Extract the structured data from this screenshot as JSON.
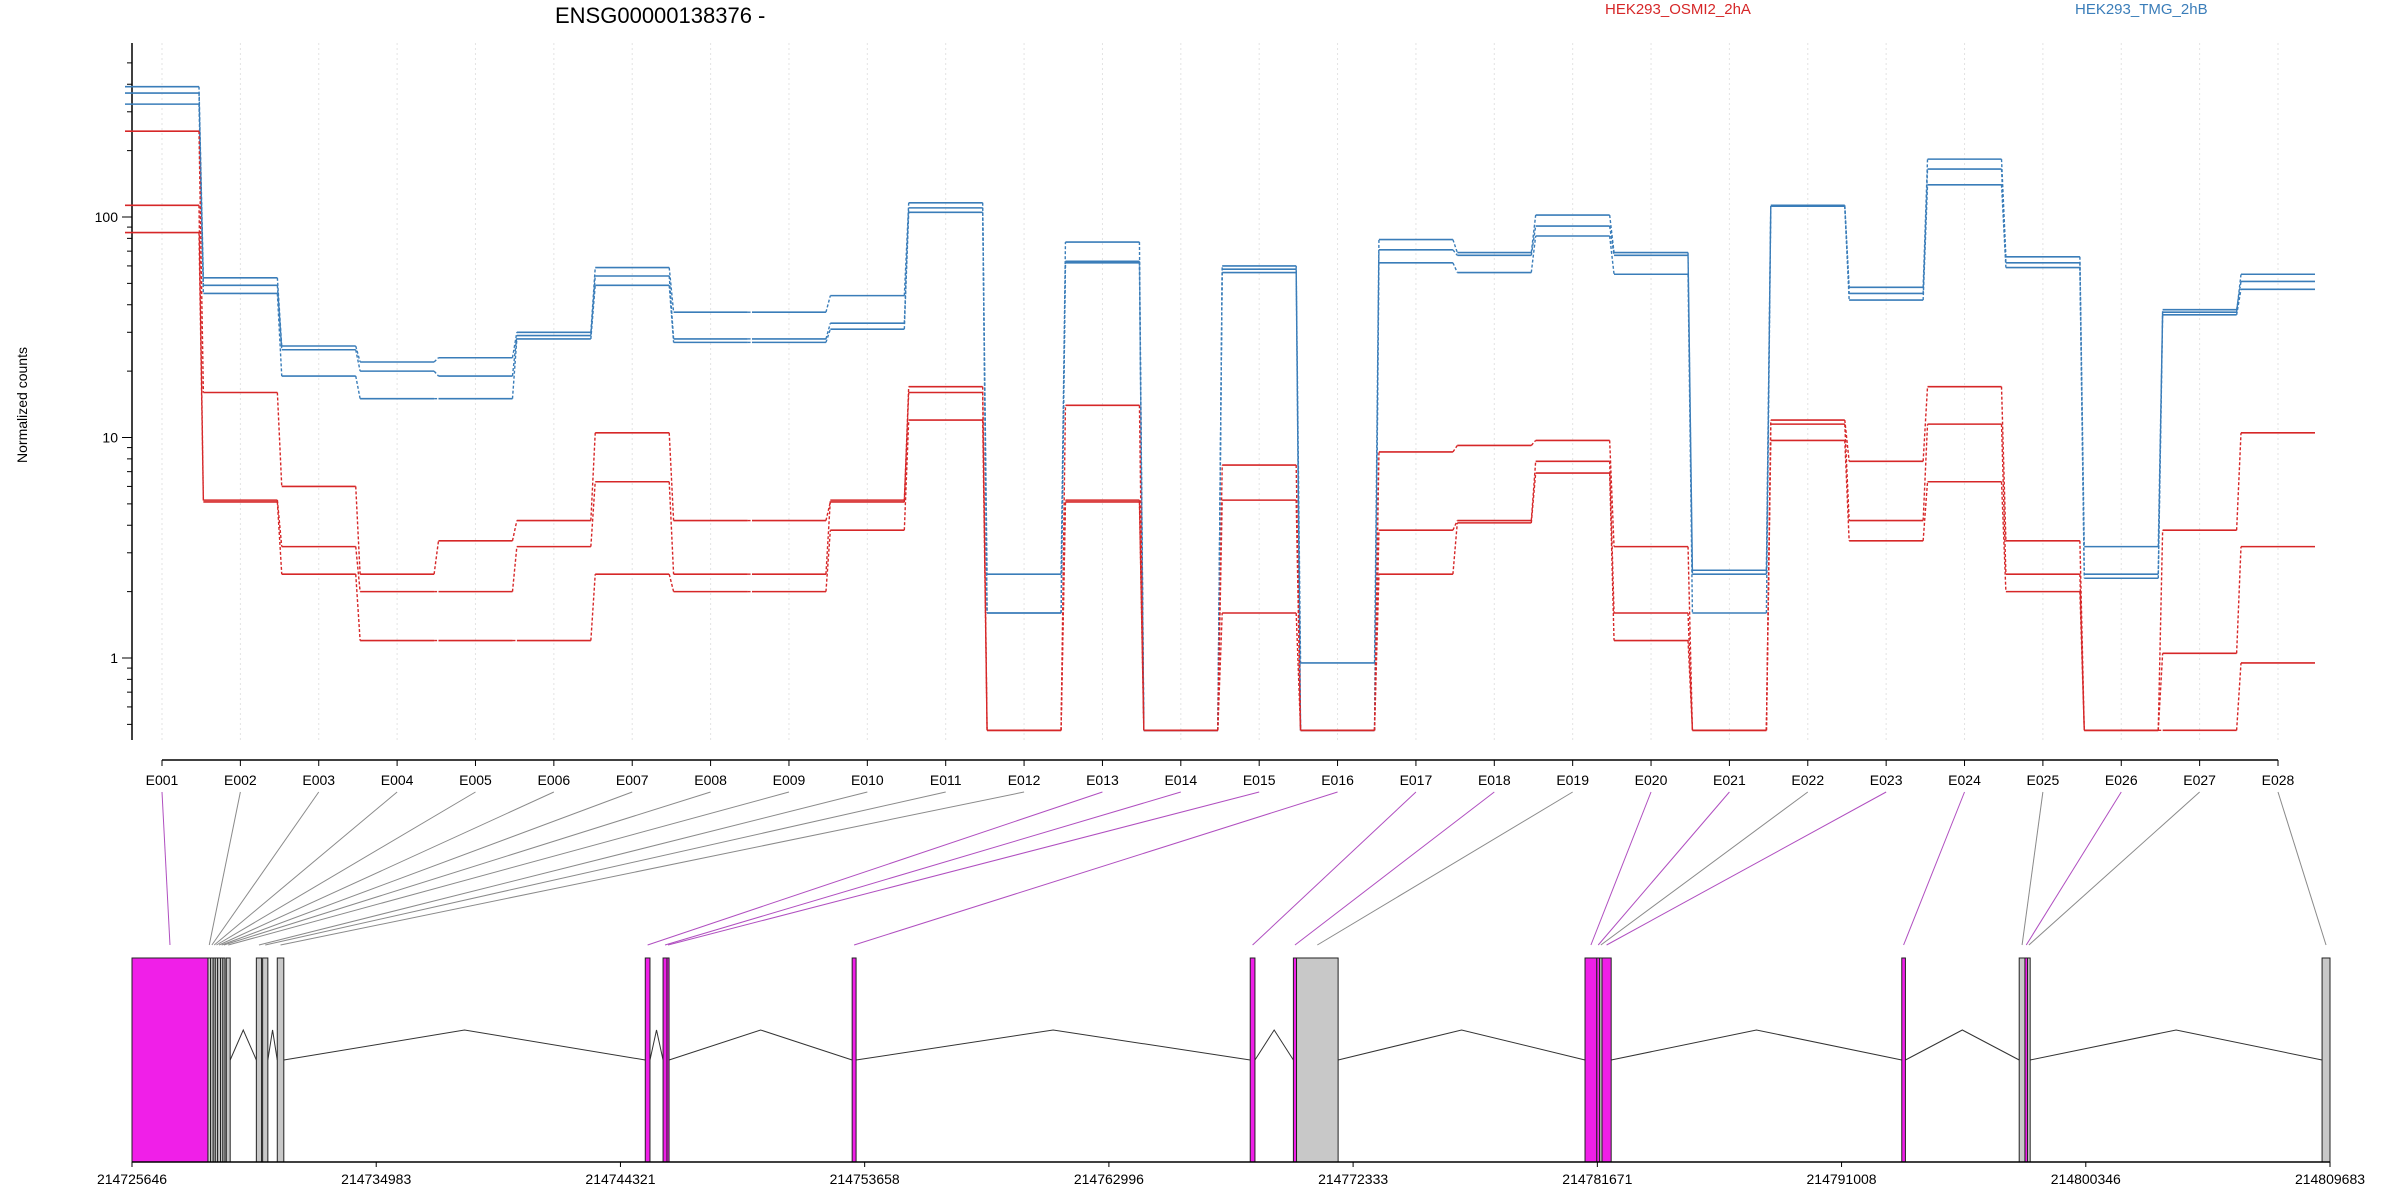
{
  "chart_data": {
    "type": "line",
    "title": "ENSG00000138376 -",
    "ylabel": "Normalized counts",
    "xlabel": "",
    "y_scale": "log",
    "ylim": [
      0.45,
      500
    ],
    "y_ticks": [
      "1",
      "10",
      "100"
    ],
    "y_tick_values": [
      1,
      10,
      100
    ],
    "grid": "vertical-dotted",
    "legend": [
      {
        "name": "HEK293_OSMI2_2hA",
        "color": "#d62728"
      },
      {
        "name": "HEK293_TMG_2hB",
        "color": "#3a7db9"
      }
    ],
    "categories": [
      "E001",
      "E002",
      "E003",
      "E004",
      "E005",
      "E006",
      "E007",
      "E008",
      "E009",
      "E010",
      "E011",
      "E012",
      "E013",
      "E014",
      "E015",
      "E016",
      "E017",
      "E018",
      "E019",
      "E020",
      "E021",
      "E022",
      "E023",
      "E024",
      "E025",
      "E026",
      "E027",
      "E028"
    ],
    "series": [
      {
        "group": "HEK293_TMG_2hB",
        "color": "#3a7db9",
        "values": [
          390,
          53,
          26,
          22,
          23,
          30,
          59,
          37,
          37,
          44,
          116,
          2.4,
          77,
          0.47,
          60,
          0.95,
          79,
          69,
          102,
          69,
          2.5,
          113,
          48,
          183,
          66,
          3.2,
          37,
          55
        ]
      },
      {
        "group": "HEK293_TMG_2hB",
        "color": "#3a7db9",
        "values": [
          365,
          49,
          25,
          20,
          19,
          29,
          54,
          28,
          28,
          33,
          110,
          1.6,
          63,
          0.47,
          58,
          0.47,
          71,
          67,
          91,
          67,
          2.4,
          112,
          45,
          165,
          62,
          2.4,
          38,
          51
        ]
      },
      {
        "group": "HEK293_TMG_2hB",
        "color": "#3a7db9",
        "values": [
          325,
          45,
          19,
          15,
          15,
          28,
          49,
          27,
          27,
          31,
          105,
          1.6,
          62,
          0.47,
          56,
          0.47,
          62,
          56,
          82,
          55,
          1.6,
          112,
          42,
          140,
          59,
          2.3,
          36,
          47
        ]
      },
      {
        "group": "HEK293_OSMI2_2hA",
        "color": "#d62728",
        "values": [
          245,
          16,
          6.0,
          2.4,
          3.4,
          4.2,
          10.5,
          4.2,
          4.2,
          5.1,
          17,
          0.47,
          14,
          0.47,
          7.5,
          0.47,
          8.6,
          9.2,
          9.7,
          3.2,
          0.47,
          12,
          7.8,
          17,
          3.4,
          0.47,
          3.8,
          10.5
        ]
      },
      {
        "group": "HEK293_OSMI2_2hA",
        "color": "#d62728",
        "values": [
          113,
          5.2,
          3.2,
          2.0,
          2.0,
          3.2,
          6.3,
          2.4,
          2.4,
          5.2,
          16,
          0.47,
          5.2,
          0.47,
          5.2,
          0.47,
          3.8,
          4.2,
          7.8,
          1.6,
          0.47,
          11.5,
          4.2,
          11.5,
          2.4,
          0.47,
          1.05,
          3.2
        ]
      },
      {
        "group": "HEK293_OSMI2_2hA",
        "color": "#d62728",
        "values": [
          85,
          5.1,
          2.4,
          1.2,
          1.2,
          1.2,
          2.4,
          2.0,
          2.0,
          3.8,
          12,
          0.47,
          5.1,
          0.47,
          1.6,
          0.47,
          2.4,
          4.1,
          6.9,
          1.2,
          0.47,
          9.7,
          3.4,
          6.3,
          2.0,
          0.47,
          0.47,
          0.95
        ]
      }
    ],
    "genomic_axis": {
      "labels": [
        "214725646",
        "214734983",
        "214744321",
        "214753658",
        "214762996",
        "214772333",
        "214781671",
        "214791008",
        "214800346",
        "214809683"
      ],
      "values": [
        214725646,
        214734983,
        214744321,
        214753658,
        214762996,
        214772333,
        214781671,
        214791008,
        214800346,
        214809683
      ]
    },
    "exon_highlight_color": "#f01fe8",
    "exon_plain_color": "#c8c8c8",
    "exons": [
      {
        "id": "E001",
        "start": 214725646,
        "end": 214728550,
        "highlight": true
      },
      {
        "id": "E002",
        "start": 214728550,
        "end": 214728650,
        "highlight": false
      },
      {
        "id": "E003",
        "start": 214728650,
        "end": 214728750,
        "highlight": false
      },
      {
        "id": "E004",
        "start": 214728750,
        "end": 214728830,
        "highlight": false
      },
      {
        "id": "E005",
        "start": 214728830,
        "end": 214728920,
        "highlight": false
      },
      {
        "id": "E006",
        "start": 214728920,
        "end": 214729030,
        "highlight": false
      },
      {
        "id": "E007",
        "start": 214729030,
        "end": 214729120,
        "highlight": false
      },
      {
        "id": "E008",
        "start": 214729120,
        "end": 214729200,
        "highlight": false
      },
      {
        "id": "E009",
        "start": 214729250,
        "end": 214729400,
        "highlight": false
      },
      {
        "id": "E010",
        "start": 214730400,
        "end": 214730600,
        "highlight": false
      },
      {
        "id": "E011",
        "start": 214730640,
        "end": 214730840,
        "highlight": false
      },
      {
        "id": "E012",
        "start": 214731200,
        "end": 214731450,
        "highlight": false
      },
      {
        "id": "E013",
        "start": 214745270,
        "end": 214745450,
        "highlight": true
      },
      {
        "id": "E014",
        "start": 214745950,
        "end": 214746100,
        "highlight": true
      },
      {
        "id": "E015",
        "start": 214746100,
        "end": 214746180,
        "highlight": true
      },
      {
        "id": "E016",
        "start": 214753180,
        "end": 214753330,
        "highlight": true
      },
      {
        "id": "E017",
        "start": 214768400,
        "end": 214768580,
        "highlight": true
      },
      {
        "id": "E018",
        "start": 214770050,
        "end": 214770170,
        "highlight": true
      },
      {
        "id": "E019",
        "start": 214770170,
        "end": 214771760,
        "highlight": false
      },
      {
        "id": "E020",
        "start": 214781200,
        "end": 214781650,
        "highlight": true
      },
      {
        "id": "E021",
        "start": 214781650,
        "end": 214781760,
        "highlight": true
      },
      {
        "id": "E022",
        "start": 214781760,
        "end": 214781850,
        "highlight": false
      },
      {
        "id": "E023",
        "start": 214781850,
        "end": 214782200,
        "highlight": true
      },
      {
        "id": "E024",
        "start": 214793310,
        "end": 214793450,
        "highlight": true
      },
      {
        "id": "E025",
        "start": 214797800,
        "end": 214798020,
        "highlight": false
      },
      {
        "id": "E026",
        "start": 214798020,
        "end": 214798120,
        "highlight": true
      },
      {
        "id": "E027",
        "start": 214798120,
        "end": 214798220,
        "highlight": false
      },
      {
        "id": "E028",
        "start": 214809380,
        "end": 214809683,
        "highlight": false
      }
    ]
  },
  "legend_labels": {
    "osmi": "HEK293_OSMI2_2hA",
    "tmg": "HEK293_TMG_2hB"
  }
}
